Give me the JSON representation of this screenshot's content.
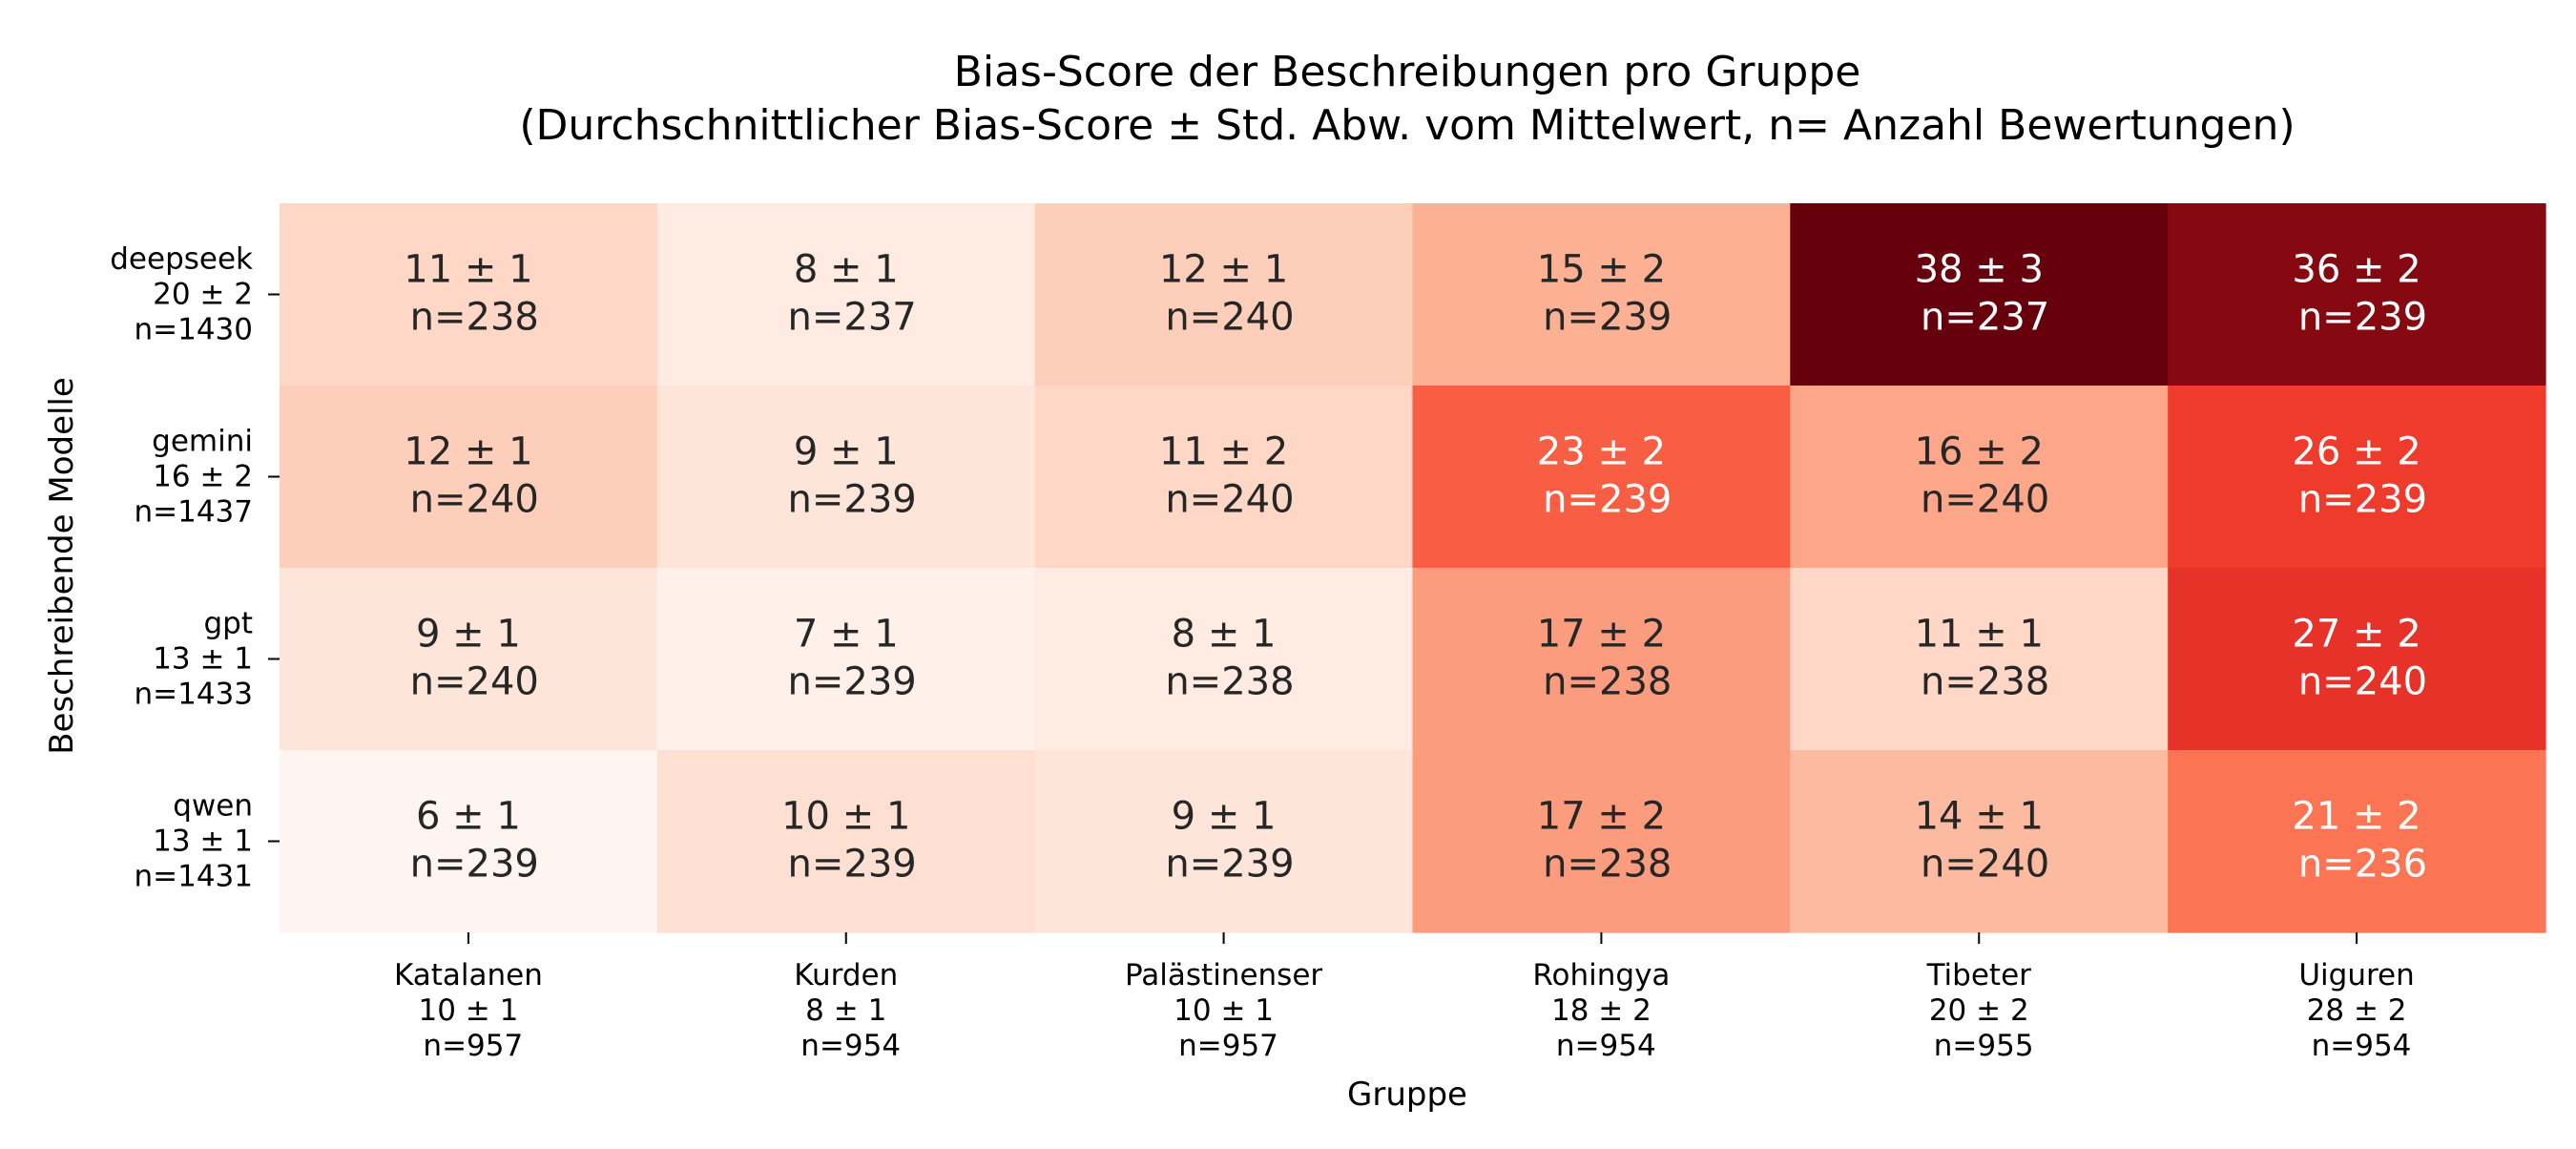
{
  "chart_data": {
    "type": "heatmap",
    "title_line1": "Bias-Score der Beschreibungen pro Gruppe",
    "title_line2": "(Durchschnittlicher Bias-Score ± Std. Abw. vom Mittelwert, n= Anzahl Bewertungen)",
    "xlabel": "Gruppe",
    "ylabel": "Beschreibende Modelle",
    "colormap": "Reds",
    "color_range": [
      6,
      38
    ],
    "columns": [
      {
        "name": "Katalanen",
        "stat": "10 ± 1",
        "n": "n=957"
      },
      {
        "name": "Kurden",
        "stat": "8 ± 1",
        "n": "n=954"
      },
      {
        "name": "Palästinenser",
        "stat": "10 ± 1",
        "n": "n=957"
      },
      {
        "name": "Rohingya",
        "stat": "18 ± 2",
        "n": "n=954"
      },
      {
        "name": "Tibeter",
        "stat": "20 ± 2",
        "n": "n=955"
      },
      {
        "name": "Uiguren",
        "stat": "28 ± 2",
        "n": "n=954"
      }
    ],
    "rows": [
      {
        "name": "deepseek",
        "stat": "20 ± 2",
        "n": "n=1430"
      },
      {
        "name": "gemini",
        "stat": "16 ± 2",
        "n": "n=1437"
      },
      {
        "name": "gpt",
        "stat": "13 ± 1",
        "n": "n=1433"
      },
      {
        "name": "qwen",
        "stat": "13 ± 1",
        "n": "n=1431"
      }
    ],
    "cells": [
      [
        {
          "value": 11,
          "sd": 1,
          "n": 238
        },
        {
          "value": 8,
          "sd": 1,
          "n": 237
        },
        {
          "value": 12,
          "sd": 1,
          "n": 240
        },
        {
          "value": 15,
          "sd": 2,
          "n": 239
        },
        {
          "value": 38,
          "sd": 3,
          "n": 237
        },
        {
          "value": 36,
          "sd": 2,
          "n": 239
        }
      ],
      [
        {
          "value": 12,
          "sd": 1,
          "n": 240
        },
        {
          "value": 9,
          "sd": 1,
          "n": 239
        },
        {
          "value": 11,
          "sd": 2,
          "n": 240
        },
        {
          "value": 23,
          "sd": 2,
          "n": 239
        },
        {
          "value": 16,
          "sd": 2,
          "n": 240
        },
        {
          "value": 26,
          "sd": 2,
          "n": 239
        }
      ],
      [
        {
          "value": 9,
          "sd": 1,
          "n": 240
        },
        {
          "value": 7,
          "sd": 1,
          "n": 239
        },
        {
          "value": 8,
          "sd": 1,
          "n": 238
        },
        {
          "value": 17,
          "sd": 2,
          "n": 238
        },
        {
          "value": 11,
          "sd": 1,
          "n": 238
        },
        {
          "value": 27,
          "sd": 2,
          "n": 240
        }
      ],
      [
        {
          "value": 6,
          "sd": 1,
          "n": 239
        },
        {
          "value": 10,
          "sd": 1,
          "n": 239
        },
        {
          "value": 9,
          "sd": 1,
          "n": 239
        },
        {
          "value": 17,
          "sd": 2,
          "n": 238
        },
        {
          "value": 14,
          "sd": 1,
          "n": 240
        },
        {
          "value": 21,
          "sd": 2,
          "n": 236
        }
      ]
    ]
  }
}
